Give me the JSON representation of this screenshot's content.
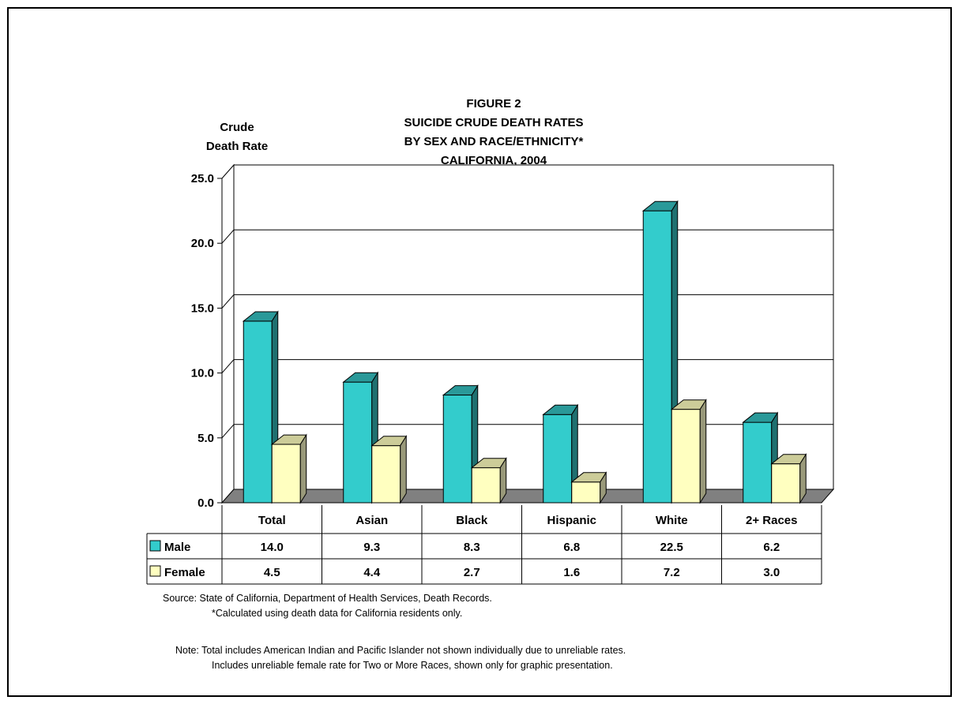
{
  "chart_data": {
    "type": "bar",
    "title_lines": [
      "FIGURE 2",
      "SUICIDE CRUDE DEATH RATES",
      "BY SEX AND RACE/ETHNICITY*",
      "CALIFORNIA, 2004"
    ],
    "ylabel_lines": [
      "Crude",
      "Death Rate"
    ],
    "xlabel": "",
    "ylim": [
      0,
      25
    ],
    "yticks": [
      "0.0",
      "5.0",
      "10.0",
      "15.0",
      "20.0",
      "25.0"
    ],
    "categories": [
      "Total",
      "Asian",
      "Black",
      "Hispanic",
      "White",
      "2+ Races"
    ],
    "series": [
      {
        "name": "Male",
        "values": [
          14.0,
          9.3,
          8.3,
          6.8,
          22.5,
          6.2
        ],
        "labels": [
          "14.0",
          "9.3",
          "8.3",
          "6.8",
          "22.5",
          "6.2"
        ],
        "color": "#33CCCC"
      },
      {
        "name": "Female",
        "values": [
          4.5,
          4.4,
          2.7,
          1.6,
          7.2,
          3.0
        ],
        "labels": [
          "4.5",
          "4.4",
          "2.7",
          "1.6",
          "7.2",
          "3.0"
        ],
        "color": "#FFFFC0"
      }
    ],
    "grid": true,
    "legend": "data-table"
  },
  "source": {
    "line1": "Source:  State of California, Department of Health Services, Death Records.",
    "line2": "*Calculated using death data for California residents only."
  },
  "note": {
    "line1": "Note:  Total includes American Indian and Pacific Islander not shown individually due to unreliable rates.",
    "line2": "Includes unreliable female rate for Two or More Races, shown only for graphic presentation."
  }
}
